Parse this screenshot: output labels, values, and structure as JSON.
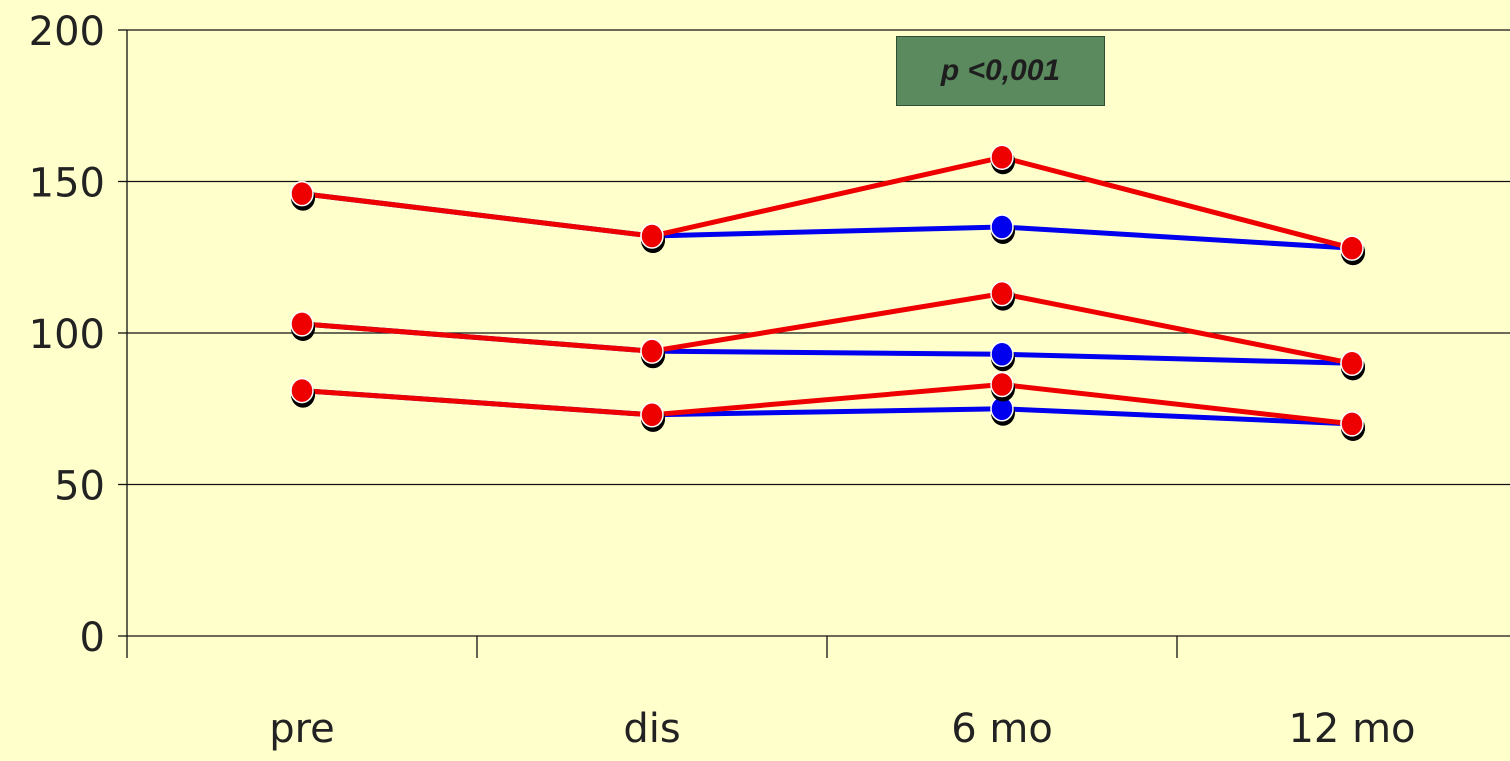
{
  "chart_data": {
    "type": "line",
    "categories": [
      "pre",
      "dis",
      "6 mo",
      "12 mo"
    ],
    "ylim": [
      0,
      200
    ],
    "yticks": [
      0,
      50,
      100,
      150,
      200
    ],
    "grid": true,
    "series": [
      {
        "color": "#0000EE",
        "values": [
          146,
          132,
          135,
          128
        ]
      },
      {
        "color": "#EE0000",
        "values": [
          146,
          132,
          158,
          128
        ]
      },
      {
        "color": "#0000EE",
        "values": [
          103,
          94,
          93,
          90
        ]
      },
      {
        "color": "#EE0000",
        "values": [
          103,
          94,
          113,
          90
        ]
      },
      {
        "color": "#0000EE",
        "values": [
          81,
          73,
          75,
          70
        ]
      },
      {
        "color": "#EE0000",
        "values": [
          81,
          73,
          83,
          70
        ]
      }
    ],
    "annotation": "p <0,001",
    "annotation_bg": "#5B8A5E",
    "background": "#FFFFCC"
  }
}
